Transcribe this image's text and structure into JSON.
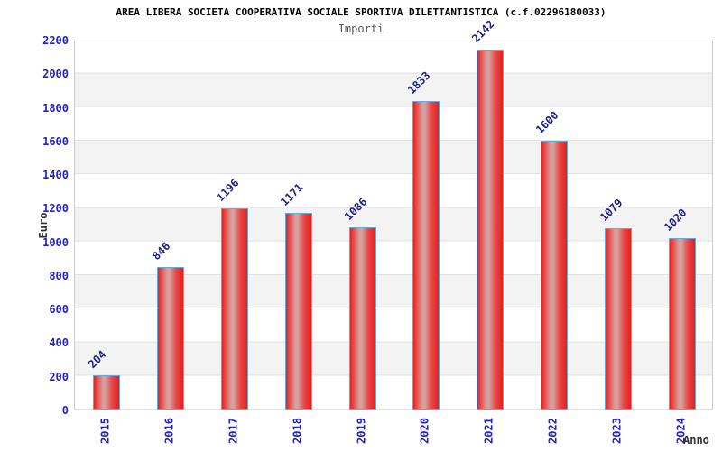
{
  "header": {
    "title": "AREA LIBERA SOCIETA COOPERATIVA SOCIALE SPORTIVA DILETTANTISTICA (c.f.02296180033)",
    "subtitle": "Importi"
  },
  "chart_data": {
    "type": "bar",
    "title": "AREA LIBERA SOCIETA COOPERATIVA SOCIALE SPORTIVA DILETTANTISTICA (c.f.02296180033)",
    "subtitle": "Importi",
    "categories": [
      "2015",
      "2016",
      "2017",
      "2018",
      "2019",
      "2020",
      "2021",
      "2022",
      "2023",
      "2024"
    ],
    "values": [
      204,
      846,
      1196,
      1171,
      1086,
      1833,
      2142,
      1600,
      1079,
      1020
    ],
    "xlabel": "Anno",
    "ylabel": "Euro",
    "ylim": [
      0,
      2200
    ],
    "yticks": [
      0,
      200,
      400,
      600,
      800,
      1000,
      1200,
      1400,
      1600,
      1800,
      2000,
      2200
    ],
    "grid": "alternating-horizontal-bands",
    "legend": "none",
    "bar_value_labels": true
  },
  "colors": {
    "bar_fill": "#e3201e",
    "bar_fill_light": "#d4a2a0",
    "bar_border": "#62a9e0",
    "tick_label": "#2222cc",
    "value_label": "#222288",
    "axis_title": "#333333",
    "subtitle_text": "#555555",
    "band_gray": "#f3f3f3",
    "grid_line": "#e2e2e2",
    "frame": "#cccccc"
  }
}
